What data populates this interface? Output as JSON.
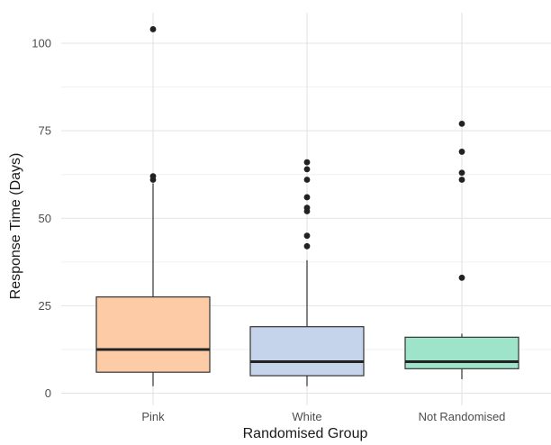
{
  "chart_data": {
    "type": "box",
    "xlabel": "Randomised Group",
    "ylabel": "Response Time (Days)",
    "ylim": [
      0,
      107
    ],
    "yticks": [
      0,
      25,
      50,
      75,
      100
    ],
    "grid": true,
    "categories": [
      "Pink",
      "White",
      "Not Randomised"
    ],
    "boxes": [
      {
        "category": "Pink",
        "color": "#fdcca6",
        "lower_whisker": 2,
        "q1": 6,
        "median": 12.5,
        "q3": 27.5,
        "upper_whisker": 60,
        "outliers": [
          61,
          62,
          104
        ]
      },
      {
        "category": "White",
        "color": "#c5d4ea",
        "lower_whisker": 2,
        "q1": 5,
        "median": 9,
        "q3": 19,
        "upper_whisker": 38,
        "outliers": [
          42,
          45,
          52,
          53,
          56,
          61,
          64,
          66
        ]
      },
      {
        "category": "Not Randomised",
        "color": "#9ee4cb",
        "lower_whisker": 4,
        "q1": 7,
        "median": 9,
        "q3": 16,
        "upper_whisker": 17,
        "outliers": [
          33,
          61,
          63,
          69,
          77
        ]
      }
    ]
  }
}
